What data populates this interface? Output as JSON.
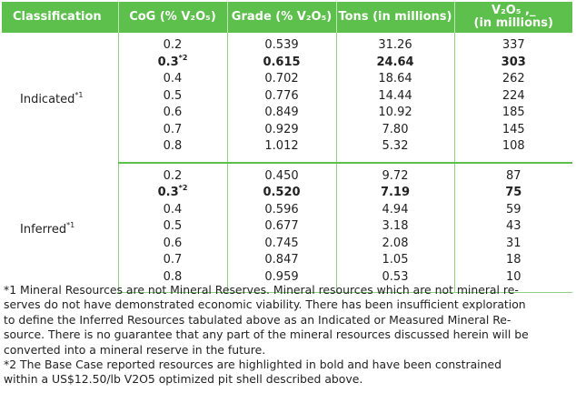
{
  "headers": {
    "classification": "Classification",
    "cog": "CoG (% V₂O₅)",
    "grade": "Grade (% V₂O₅)",
    "tons": "Tons (in millions)",
    "v2o5_line1": "V₂O₅ ,_",
    "v2o5_line2": "(in millions)"
  },
  "groups": [
    {
      "label": "Indicated",
      "label_sup": "*1",
      "rows": [
        {
          "cog": "0.2",
          "cog_sup": "",
          "grade": "0.539",
          "tons": "31.26",
          "v2o5": "337",
          "bold": false
        },
        {
          "cog": "0.3",
          "cog_sup": "*2",
          "grade": "0.615",
          "tons": "24.64",
          "v2o5": "303",
          "bold": true
        },
        {
          "cog": "0.4",
          "cog_sup": "",
          "grade": "0.702",
          "tons": "18.64",
          "v2o5": "262",
          "bold": false
        },
        {
          "cog": "0.5",
          "cog_sup": "",
          "grade": "0.776",
          "tons": "14.44",
          "v2o5": "224",
          "bold": false
        },
        {
          "cog": "0.6",
          "cog_sup": "",
          "grade": "0.849",
          "tons": "10.92",
          "v2o5": "185",
          "bold": false
        },
        {
          "cog": "0.7",
          "cog_sup": "",
          "grade": "0.929",
          "tons": "7.80",
          "v2o5": "145",
          "bold": false
        },
        {
          "cog": "0.8",
          "cog_sup": "",
          "grade": "1.012",
          "tons": "5.32",
          "v2o5": "108",
          "bold": false
        }
      ]
    },
    {
      "label": "Inferred",
      "label_sup": "*1",
      "rows": [
        {
          "cog": "0.2",
          "cog_sup": "",
          "grade": "0.450",
          "tons": "9.72",
          "v2o5": "87",
          "bold": false
        },
        {
          "cog": "0.3",
          "cog_sup": "*2",
          "grade": "0.520",
          "tons": "7.19",
          "v2o5": "75",
          "bold": true
        },
        {
          "cog": "0.4",
          "cog_sup": "",
          "grade": "0.596",
          "tons": "4.94",
          "v2o5": "59",
          "bold": false
        },
        {
          "cog": "0.5",
          "cog_sup": "",
          "grade": "0.677",
          "tons": "3.18",
          "v2o5": "43",
          "bold": false
        },
        {
          "cog": "0.6",
          "cog_sup": "",
          "grade": "0.745",
          "tons": "2.08",
          "v2o5": "31",
          "bold": false
        },
        {
          "cog": "0.7",
          "cog_sup": "",
          "grade": "0.847",
          "tons": "1.05",
          "v2o5": "18",
          "bold": false
        },
        {
          "cog": "0.8",
          "cog_sup": "",
          "grade": "0.959",
          "tons": "0.53",
          "v2o5": "10",
          "bold": false
        }
      ]
    }
  ],
  "notes": {
    "note1_lines": [
      "*1 Mineral Resources are not Mineral Reserves. Mineral resources which are not mineral re-",
      "serves do not have demonstrated economic viability. There has been insufficient exploration",
      "to define the Inferred Resources tabulated above as an Indicated or Measured Mineral Re-",
      "source.  There is no guarantee that any part of the mineral resources discussed herein will be",
      "converted into a mineral reserve in the future."
    ],
    "note2_lines": [
      "*2 The Base Case reported resources are highlighted in bold and have been constrained",
      "within a US$12.50/lb V2O5 optimized pit shell described above."
    ]
  },
  "colors": {
    "header_green": "#5dbf4c",
    "grid_green": "#8fd082"
  }
}
